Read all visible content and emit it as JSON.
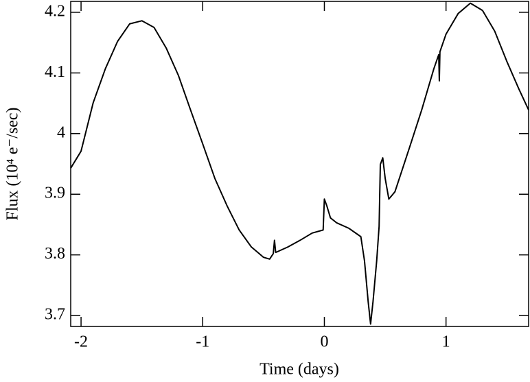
{
  "chart_data": {
    "type": "line",
    "xlabel": "Time (days)",
    "ylabel": "Flux (10⁴ e⁻/sec)",
    "x": [
      -2.085,
      -2.0,
      -1.9,
      -1.8,
      -1.7,
      -1.6,
      -1.5,
      -1.4,
      -1.3,
      -1.2,
      -1.1,
      -1.0,
      -0.9,
      -0.8,
      -0.7,
      -0.6,
      -0.5,
      -0.45,
      -0.42,
      -0.41,
      -0.4,
      -0.3,
      -0.2,
      -0.1,
      -0.01,
      0.0,
      0.02,
      0.05,
      0.1,
      0.2,
      0.3,
      0.33,
      0.36,
      0.38,
      0.4,
      0.43,
      0.45,
      0.46,
      0.48,
      0.5,
      0.53,
      0.58,
      0.7,
      0.8,
      0.9,
      0.94,
      0.945,
      0.95,
      1.0,
      1.1,
      1.2,
      1.3,
      1.4,
      1.5,
      1.6,
      1.679
    ],
    "series": [
      {
        "color": "#000000",
        "values": [
          3.943,
          3.971,
          4.051,
          4.107,
          4.152,
          4.181,
          4.186,
          4.175,
          4.141,
          4.096,
          4.039,
          3.983,
          3.926,
          3.881,
          3.841,
          3.813,
          3.796,
          3.793,
          3.802,
          3.824,
          3.804,
          3.813,
          3.824,
          3.836,
          3.841,
          3.892,
          3.881,
          3.861,
          3.853,
          3.844,
          3.83,
          3.79,
          3.723,
          3.686,
          3.723,
          3.79,
          3.847,
          3.949,
          3.96,
          3.926,
          3.892,
          3.904,
          3.977,
          4.039,
          4.107,
          4.13,
          4.087,
          4.135,
          4.164,
          4.198,
          4.215,
          4.203,
          4.169,
          4.119,
          4.073,
          4.039
        ]
      }
    ],
    "xlim": [
      -2.085,
      1.679
    ],
    "ylim": [
      3.682,
      4.218
    ],
    "xticks": [
      -2,
      -1,
      0,
      1
    ],
    "yticks": [
      3.7,
      3.8,
      3.9,
      4.0,
      4.1,
      4.2
    ]
  }
}
